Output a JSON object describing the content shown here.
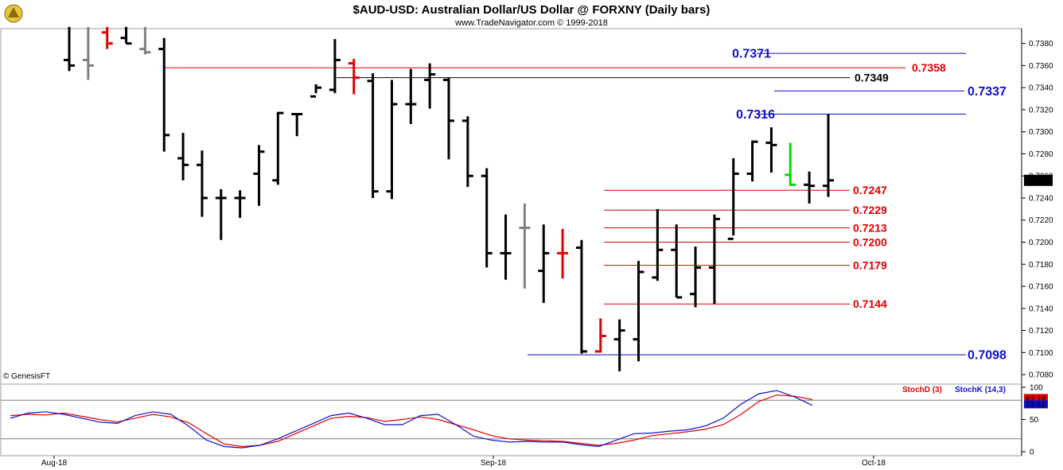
{
  "header": {
    "title": "$AUD-USD:  Australian Dollar/US Dollar @ FORXNY  (Daily bars)",
    "subtitle": "www.TradeNavigator.com © 1999-2018",
    "watermark": "© GenesisFT"
  },
  "colors": {
    "up": "#000000",
    "gray": "#808080",
    "red": "#e00000",
    "green": "#00dd00",
    "blue_level": "#1010cc",
    "red_level": "#e00000",
    "black_level": "#000000",
    "stoch_d": "#e00000",
    "stoch_k": "#1010cc"
  },
  "chart_data": [
    {
      "type": "ohlc",
      "title": "$AUD-USD:  Australian Dollar/US Dollar @ FORXNY  (Daily bars)",
      "ylim": [
        0.7075,
        0.7392
      ],
      "y_ticks": [
        "0.7080",
        "0.7100",
        "0.7120",
        "0.7140",
        "0.7160",
        "0.7180",
        "0.7200",
        "0.7220",
        "0.7240",
        "0.7260",
        "0.7280",
        "0.7300",
        "0.7320",
        "0.7340",
        "0.7360",
        "0.7380"
      ],
      "x_labels": [
        "Aug-18",
        "Sep-18",
        "Oct-18"
      ],
      "last_price": "0.7256",
      "bars": [
        {
          "o": 0.7365,
          "h": 0.7395,
          "l": 0.7355,
          "c": 0.736,
          "color": "black"
        },
        {
          "o": 0.7365,
          "h": 0.7395,
          "l": 0.7347,
          "c": 0.736,
          "color": "gray"
        },
        {
          "o": 0.739,
          "h": 0.7395,
          "l": 0.7375,
          "c": 0.738,
          "color": "red"
        },
        {
          "o": 0.7385,
          "h": 0.7395,
          "l": 0.738,
          "c": 0.738,
          "color": "black"
        },
        {
          "o": 0.7375,
          "h": 0.7395,
          "l": 0.737,
          "c": 0.7372,
          "color": "gray"
        },
        {
          "o": 0.7375,
          "h": 0.7385,
          "l": 0.7282,
          "c": 0.7297,
          "color": "black"
        },
        {
          "o": 0.7276,
          "h": 0.7299,
          "l": 0.7256,
          "c": 0.727,
          "color": "black"
        },
        {
          "o": 0.727,
          "h": 0.7283,
          "l": 0.7223,
          "c": 0.724,
          "color": "black"
        },
        {
          "o": 0.724,
          "h": 0.7248,
          "l": 0.7202,
          "c": 0.724,
          "color": "black"
        },
        {
          "o": 0.724,
          "h": 0.7247,
          "l": 0.7222,
          "c": 0.724,
          "color": "black"
        },
        {
          "o": 0.7262,
          "h": 0.7288,
          "l": 0.7233,
          "c": 0.7282,
          "color": "black"
        },
        {
          "o": 0.7256,
          "h": 0.7318,
          "l": 0.7252,
          "c": 0.7317,
          "color": "black"
        },
        {
          "o": 0.7316,
          "h": 0.7317,
          "l": 0.7296,
          "c": 0.7316,
          "color": "black"
        },
        {
          "o": 0.7332,
          "h": 0.7343,
          "l": 0.7335,
          "c": 0.734,
          "color": "black"
        },
        {
          "o": 0.7338,
          "h": 0.7384,
          "l": 0.7335,
          "c": 0.7365,
          "color": "black"
        },
        {
          "o": 0.7362,
          "h": 0.7366,
          "l": 0.7334,
          "c": 0.7349,
          "color": "red"
        },
        {
          "o": 0.7346,
          "h": 0.7353,
          "l": 0.724,
          "c": 0.7246,
          "color": "black"
        },
        {
          "o": 0.7246,
          "h": 0.7347,
          "l": 0.7239,
          "c": 0.7325,
          "color": "black"
        },
        {
          "o": 0.7325,
          "h": 0.7357,
          "l": 0.7307,
          "c": 0.7325,
          "color": "black"
        },
        {
          "o": 0.7347,
          "h": 0.7362,
          "l": 0.7321,
          "c": 0.7352,
          "color": "black"
        },
        {
          "o": 0.7347,
          "h": 0.7349,
          "l": 0.7275,
          "c": 0.731,
          "color": "black"
        },
        {
          "o": 0.731,
          "h": 0.7314,
          "l": 0.725,
          "c": 0.726,
          "color": "black"
        },
        {
          "o": 0.726,
          "h": 0.7267,
          "l": 0.7177,
          "c": 0.719,
          "color": "black"
        },
        {
          "o": 0.719,
          "h": 0.7225,
          "l": 0.7166,
          "c": 0.719,
          "color": "black"
        },
        {
          "o": 0.7213,
          "h": 0.7235,
          "l": 0.7158,
          "c": 0.7213,
          "color": "gray"
        },
        {
          "o": 0.7174,
          "h": 0.7216,
          "l": 0.7145,
          "c": 0.719,
          "color": "black"
        },
        {
          "o": 0.719,
          "h": 0.7212,
          "l": 0.7167,
          "c": 0.719,
          "color": "red"
        },
        {
          "o": 0.7195,
          "h": 0.7202,
          "l": 0.7099,
          "c": 0.7101,
          "color": "black"
        },
        {
          "o": 0.7101,
          "h": 0.7131,
          "l": 0.71,
          "c": 0.7115,
          "color": "red"
        },
        {
          "o": 0.7112,
          "h": 0.713,
          "l": 0.7083,
          "c": 0.712,
          "color": "black"
        },
        {
          "o": 0.7112,
          "h": 0.7183,
          "l": 0.7092,
          "c": 0.7173,
          "color": "black"
        },
        {
          "o": 0.7168,
          "h": 0.723,
          "l": 0.7165,
          "c": 0.7193,
          "color": "black"
        },
        {
          "o": 0.7193,
          "h": 0.7216,
          "l": 0.715,
          "c": 0.715,
          "color": "black"
        },
        {
          "o": 0.7153,
          "h": 0.7196,
          "l": 0.7141,
          "c": 0.7177,
          "color": "black"
        },
        {
          "o": 0.7177,
          "h": 0.7225,
          "l": 0.7144,
          "c": 0.7221,
          "color": "black"
        },
        {
          "o": 0.7203,
          "h": 0.7276,
          "l": 0.7206,
          "c": 0.7262,
          "color": "black"
        },
        {
          "o": 0.7262,
          "h": 0.7292,
          "l": 0.7255,
          "c": 0.7291,
          "color": "black"
        },
        {
          "o": 0.729,
          "h": 0.7304,
          "l": 0.7263,
          "c": 0.7288,
          "color": "black"
        },
        {
          "o": 0.7261,
          "h": 0.729,
          "l": 0.7251,
          "c": 0.7252,
          "color": "green"
        },
        {
          "o": 0.7252,
          "h": 0.7264,
          "l": 0.7235,
          "c": 0.7251,
          "color": "black"
        },
        {
          "o": 0.7251,
          "h": 0.7316,
          "l": 0.7241,
          "c": 0.7256,
          "color": "black"
        }
      ],
      "levels": [
        {
          "value": 0.7371,
          "label": "0.7371",
          "color": "blue"
        },
        {
          "value": 0.7358,
          "label": "0.7358",
          "color": "red"
        },
        {
          "value": 0.7349,
          "label": "0.7349",
          "color": "black"
        },
        {
          "value": 0.7337,
          "label": "0.7337",
          "color": "blue"
        },
        {
          "value": 0.7316,
          "label": "0.7316",
          "color": "blue"
        },
        {
          "value": 0.7247,
          "label": "0.7247",
          "color": "red"
        },
        {
          "value": 0.7229,
          "label": "0.7229",
          "color": "red"
        },
        {
          "value": 0.7213,
          "label": "0.7213",
          "color": "red"
        },
        {
          "value": 0.72,
          "label": "0.7200",
          "color": "red"
        },
        {
          "value": 0.7179,
          "label": "0.7179",
          "color": "red"
        },
        {
          "value": 0.7144,
          "label": "0.7144",
          "color": "red"
        },
        {
          "value": 0.7098,
          "label": "0.7098",
          "color": "blue"
        }
      ]
    },
    {
      "type": "line",
      "legend": [
        "StochD (3)",
        "StochK (14,3)"
      ],
      "ylim": [
        0,
        100
      ],
      "y_ticks": [
        "0",
        "50",
        "100"
      ],
      "guides": [
        20,
        80
      ],
      "last_values": [
        "82.18",
        "73.52"
      ],
      "series": [
        {
          "name": "StochD (3)",
          "color": "red",
          "values": [
            56,
            58,
            57,
            60,
            55,
            50,
            46,
            52,
            58,
            54,
            45,
            28,
            12,
            8,
            10,
            16,
            28,
            40,
            52,
            55,
            53,
            47,
            50,
            54,
            50,
            42,
            34,
            25,
            20,
            18,
            17,
            16,
            13,
            10,
            13,
            18,
            25,
            28,
            31,
            35,
            42,
            58,
            78,
            88,
            86,
            81
          ]
        },
        {
          "name": "StochK (14,3)",
          "color": "blue",
          "values": [
            52,
            60,
            62,
            58,
            52,
            46,
            44,
            56,
            62,
            58,
            40,
            18,
            8,
            6,
            10,
            20,
            32,
            44,
            56,
            60,
            52,
            42,
            42,
            56,
            58,
            42,
            24,
            18,
            15,
            16,
            15,
            15,
            11,
            8,
            18,
            28,
            29,
            32,
            34,
            40,
            52,
            74,
            90,
            95,
            85,
            72
          ]
        }
      ]
    }
  ]
}
